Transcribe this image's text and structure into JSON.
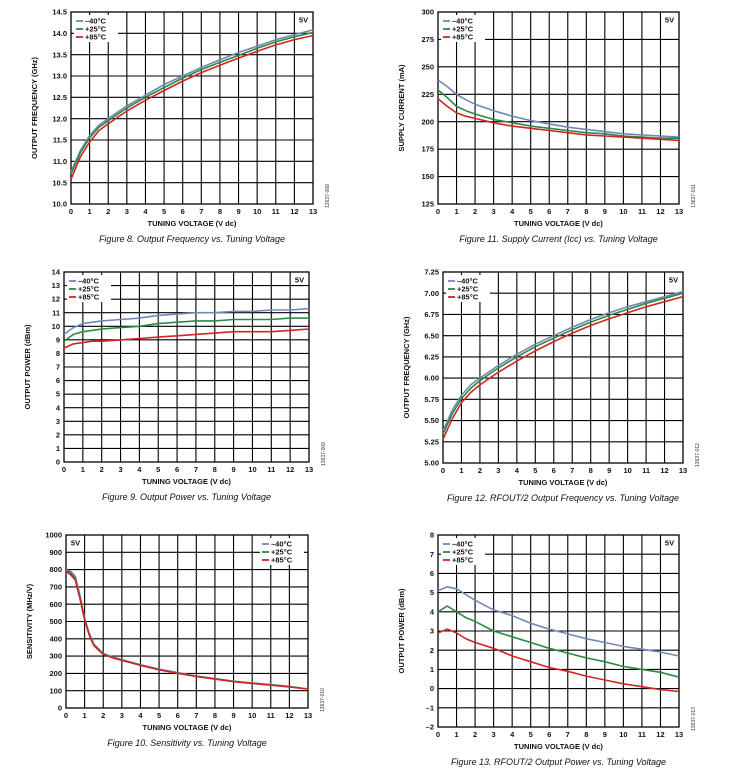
{
  "colors": {
    "m40": "#7387b8",
    "p25": "#2a8a45",
    "p85": "#d42424"
  },
  "chart_data": [
    {
      "type": "line",
      "caption": "Figure 8. Output Frequency vs. Tuning Voltage",
      "xlabel": "TUNING VOLTAGE (V dc)",
      "ylabel": "OUTPUT FREQUENCY (GHz)",
      "note": "5V",
      "code": "13637-008",
      "xlim": [
        0,
        13
      ],
      "ylim": [
        10.0,
        14.5
      ],
      "xticks": [
        "0",
        "1",
        "2",
        "3",
        "4",
        "5",
        "6",
        "7",
        "8",
        "9",
        "10",
        "11",
        "12",
        "13"
      ],
      "yticks": [
        "10.0",
        "10.5",
        "11.0",
        "11.5",
        "12.0",
        "12.5",
        "13.0",
        "13.5",
        "14.0",
        "14.5"
      ],
      "grid": true,
      "legend": "top-left",
      "x": [
        0,
        0.5,
        1,
        1.5,
        2,
        3,
        4,
        5,
        6,
        7,
        8,
        9,
        10,
        11,
        12,
        13
      ],
      "series": [
        {
          "name": "–40°C",
          "color": "m40",
          "values": [
            10.75,
            11.25,
            11.6,
            11.85,
            12.0,
            12.3,
            12.55,
            12.8,
            13.0,
            13.2,
            13.38,
            13.55,
            13.7,
            13.85,
            13.97,
            14.08
          ]
        },
        {
          "name": "+25°C",
          "color": "p25",
          "values": [
            10.7,
            11.2,
            11.55,
            11.8,
            11.95,
            12.25,
            12.5,
            12.73,
            12.95,
            13.15,
            13.32,
            13.48,
            13.65,
            13.8,
            13.92,
            14.02
          ]
        },
        {
          "name": "+85°C",
          "color": "p85",
          "values": [
            10.58,
            11.1,
            11.45,
            11.72,
            11.88,
            12.18,
            12.43,
            12.66,
            12.88,
            13.08,
            13.25,
            13.42,
            13.58,
            13.73,
            13.85,
            13.95
          ]
        }
      ]
    },
    {
      "type": "line",
      "caption": "Figure 9. Output Power vs. Tuning Voltage",
      "xlabel": "TUNING VOLTAGE (V dc)",
      "ylabel": "OUTPUT POWER (dBm)",
      "note": "5V",
      "code": "13637-009",
      "xlim": [
        0,
        13
      ],
      "ylim": [
        0,
        14
      ],
      "xticks": [
        "0",
        "1",
        "2",
        "3",
        "4",
        "5",
        "6",
        "7",
        "8",
        "9",
        "10",
        "11",
        "12",
        "13"
      ],
      "yticks": [
        "0",
        "1",
        "2",
        "3",
        "4",
        "5",
        "6",
        "7",
        "8",
        "9",
        "10",
        "11",
        "12",
        "13",
        "14"
      ],
      "grid": true,
      "legend": "top-left",
      "x": [
        0,
        0.5,
        1,
        1.5,
        2,
        3,
        4,
        5,
        6,
        7,
        8,
        9,
        10,
        11,
        12,
        13
      ],
      "series": [
        {
          "name": "–40°C",
          "color": "m40",
          "values": [
            9.4,
            9.9,
            10.2,
            10.3,
            10.4,
            10.5,
            10.6,
            10.8,
            10.9,
            11.0,
            11.0,
            11.1,
            11.1,
            11.2,
            11.2,
            11.3
          ]
        },
        {
          "name": "+25°C",
          "color": "p25",
          "values": [
            8.9,
            9.4,
            9.6,
            9.7,
            9.8,
            9.9,
            10.0,
            10.2,
            10.3,
            10.4,
            10.4,
            10.5,
            10.5,
            10.5,
            10.6,
            10.6
          ]
        },
        {
          "name": "+85°C",
          "color": "p85",
          "values": [
            8.4,
            8.7,
            8.8,
            8.9,
            8.9,
            9.0,
            9.1,
            9.2,
            9.3,
            9.4,
            9.5,
            9.6,
            9.6,
            9.6,
            9.7,
            9.8
          ]
        }
      ]
    },
    {
      "type": "line",
      "caption": "Figure 10. Sensitivity vs. Tuning Voltage",
      "xlabel": "TUNING VOLTAGE (V dc)",
      "ylabel": "SENSITIVITY (MHz/V)",
      "note": "5V",
      "code": "13637-010",
      "xlim": [
        0,
        13
      ],
      "ylim": [
        0,
        1000
      ],
      "xticks": [
        "0",
        "1",
        "2",
        "3",
        "4",
        "5",
        "6",
        "7",
        "8",
        "9",
        "10",
        "11",
        "12",
        "13"
      ],
      "yticks": [
        "0",
        "100",
        "200",
        "300",
        "400",
        "500",
        "600",
        "700",
        "800",
        "900",
        "1000"
      ],
      "grid": true,
      "legend": "top-right",
      "x": [
        0,
        0.25,
        0.5,
        0.75,
        1,
        1.25,
        1.5,
        2,
        2.5,
        3,
        4,
        5,
        6,
        7,
        8,
        9,
        10,
        11,
        12,
        13
      ],
      "series": [
        {
          "name": "–40°C",
          "color": "m40",
          "values": [
            800,
            790,
            760,
            650,
            520,
            430,
            370,
            315,
            295,
            280,
            250,
            225,
            205,
            185,
            170,
            155,
            145,
            135,
            125,
            110
          ]
        },
        {
          "name": "+25°C",
          "color": "p25",
          "values": [
            795,
            780,
            750,
            640,
            515,
            425,
            365,
            312,
            292,
            278,
            248,
            222,
            202,
            183,
            168,
            153,
            143,
            133,
            123,
            110
          ]
        },
        {
          "name": "+85°C",
          "color": "p85",
          "values": [
            790,
            770,
            740,
            630,
            510,
            420,
            360,
            310,
            290,
            276,
            246,
            220,
            200,
            182,
            167,
            152,
            142,
            132,
            122,
            110
          ]
        }
      ]
    },
    {
      "type": "line",
      "caption": "Figure 11. Supply Current (Icc) vs. Tuning Voltage",
      "xlabel": "TUNING VOLTAGE (V dc)",
      "ylabel": "SUPPLY CURRENT (mA)",
      "note": "5V",
      "code": "13637-011",
      "xlim": [
        0,
        13
      ],
      "ylim": [
        125,
        300
      ],
      "xticks": [
        "0",
        "1",
        "2",
        "3",
        "4",
        "5",
        "6",
        "7",
        "8",
        "9",
        "10",
        "11",
        "12",
        "13"
      ],
      "yticks": [
        "125",
        "150",
        "175",
        "200",
        "225",
        "250",
        "275",
        "300"
      ],
      "grid": true,
      "legend": "top-left",
      "x": [
        0,
        0.5,
        1,
        1.5,
        2,
        3,
        4,
        5,
        6,
        7,
        8,
        9,
        10,
        11,
        12,
        13
      ],
      "series": [
        {
          "name": "–40°C",
          "color": "m40",
          "values": [
            238,
            232,
            225,
            220,
            216,
            210,
            205,
            201,
            198,
            195,
            193,
            191,
            189,
            188,
            187,
            186
          ]
        },
        {
          "name": "+25°C",
          "color": "p25",
          "values": [
            229,
            222,
            214,
            210,
            207,
            202,
            199,
            196,
            194,
            192,
            190,
            189,
            187,
            186,
            185,
            185
          ]
        },
        {
          "name": "+85°C",
          "color": "p85",
          "values": [
            221,
            214,
            208,
            205,
            203,
            199,
            196,
            194,
            192,
            190,
            188,
            187,
            186,
            185,
            184,
            183
          ]
        }
      ]
    },
    {
      "type": "line",
      "caption": "Figure 12. RFOUT/2 Output Frequency vs. Tuning Voltage",
      "xlabel": "TUNING VOLTAGE (V dc)",
      "ylabel": "OUTPUT FREQUENCY (GHz)",
      "note": "5V",
      "code": "13637-012",
      "xlim": [
        0,
        13
      ],
      "ylim": [
        5.0,
        7.25
      ],
      "xticks": [
        "0",
        "1",
        "2",
        "3",
        "4",
        "5",
        "6",
        "7",
        "8",
        "9",
        "10",
        "11",
        "12",
        "13"
      ],
      "yticks": [
        "5.00",
        "5.25",
        "5.50",
        "5.75",
        "6.00",
        "6.25",
        "6.50",
        "6.75",
        "7.00",
        "7.25"
      ],
      "grid": true,
      "legend": "top-left",
      "x": [
        0,
        0.5,
        1,
        1.5,
        2,
        3,
        4,
        5,
        6,
        7,
        8,
        9,
        10,
        11,
        12,
        13
      ],
      "series": [
        {
          "name": "–40°C",
          "color": "m40",
          "values": [
            5.38,
            5.62,
            5.8,
            5.92,
            6.0,
            6.15,
            6.28,
            6.4,
            6.5,
            6.6,
            6.69,
            6.77,
            6.84,
            6.9,
            6.96,
            7.02
          ]
        },
        {
          "name": "+25°C",
          "color": "p25",
          "values": [
            5.34,
            5.58,
            5.76,
            5.88,
            5.97,
            6.12,
            6.25,
            6.37,
            6.47,
            6.57,
            6.66,
            6.74,
            6.81,
            6.88,
            6.94,
            7.0
          ]
        },
        {
          "name": "+85°C",
          "color": "p85",
          "values": [
            5.28,
            5.52,
            5.71,
            5.83,
            5.92,
            6.07,
            6.2,
            6.32,
            6.43,
            6.53,
            6.62,
            6.7,
            6.77,
            6.84,
            6.9,
            6.96
          ]
        }
      ]
    },
    {
      "type": "line",
      "caption": "Figure 13. RFOUT/2 Output Power vs. Tuning Voltage",
      "xlabel": "TUNING VOLTAGE (V dc)",
      "ylabel": "OUTPUT POWER (dBm)",
      "note": "5V",
      "code": "13637-013",
      "xlim": [
        0,
        13
      ],
      "ylim": [
        -2,
        8
      ],
      "xticks": [
        "0",
        "1",
        "2",
        "3",
        "4",
        "5",
        "6",
        "7",
        "8",
        "9",
        "10",
        "11",
        "12",
        "13"
      ],
      "yticks": [
        "–2",
        "–1",
        "0",
        "1",
        "2",
        "3",
        "4",
        "5",
        "6",
        "7",
        "8"
      ],
      "grid": true,
      "legend": "top-left",
      "x": [
        0,
        0.5,
        1,
        1.5,
        2,
        3,
        4,
        5,
        6,
        7,
        8,
        9,
        10,
        11,
        12,
        13
      ],
      "series": [
        {
          "name": "–40°C",
          "color": "m40",
          "values": [
            5.1,
            5.3,
            5.2,
            4.9,
            4.6,
            4.1,
            3.8,
            3.4,
            3.1,
            2.85,
            2.6,
            2.4,
            2.2,
            2.05,
            1.9,
            1.7
          ]
        },
        {
          "name": "+25°C",
          "color": "p25",
          "values": [
            4.0,
            4.3,
            4.0,
            3.7,
            3.5,
            3.0,
            2.7,
            2.4,
            2.1,
            1.85,
            1.6,
            1.4,
            1.15,
            1.0,
            0.85,
            0.6
          ]
        },
        {
          "name": "+85°C",
          "color": "p85",
          "values": [
            2.9,
            3.1,
            2.9,
            2.6,
            2.4,
            2.1,
            1.7,
            1.4,
            1.1,
            0.9,
            0.65,
            0.45,
            0.25,
            0.1,
            -0.05,
            -0.15
          ]
        }
      ]
    }
  ]
}
